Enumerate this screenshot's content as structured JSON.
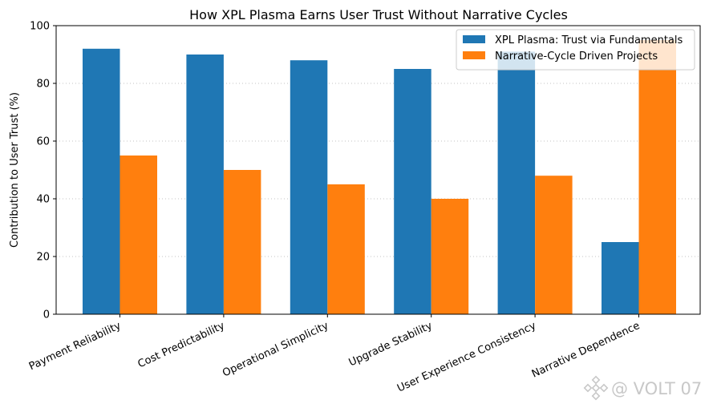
{
  "chart_data": {
    "type": "bar",
    "title": "How XPL Plasma Earns User Trust Without Narrative Cycles",
    "xlabel": "",
    "ylabel": "Contribution to User Trust (%)",
    "ylim": [
      0,
      100
    ],
    "yticks": [
      0,
      20,
      40,
      60,
      80,
      100
    ],
    "grid": "horizontal dotted",
    "legend_position": "top-right",
    "categories": [
      "Payment Reliability",
      "Cost Predictability",
      "Operational Simplicity",
      "Upgrade Stability",
      "User Experience Consistency",
      "Narrative Dependence"
    ],
    "series": [
      {
        "name": "XPL Plasma: Trust via Fundamentals",
        "color": "#1f77b4",
        "values": [
          92,
          90,
          88,
          85,
          91,
          25
        ]
      },
      {
        "name": "Narrative-Cycle Driven Projects",
        "color": "#ff7f0e",
        "values": [
          55,
          50,
          45,
          40,
          48,
          95
        ]
      }
    ]
  },
  "watermark": {
    "text": "@ VOLT 07",
    "icon": "binance-diamond-icon"
  }
}
